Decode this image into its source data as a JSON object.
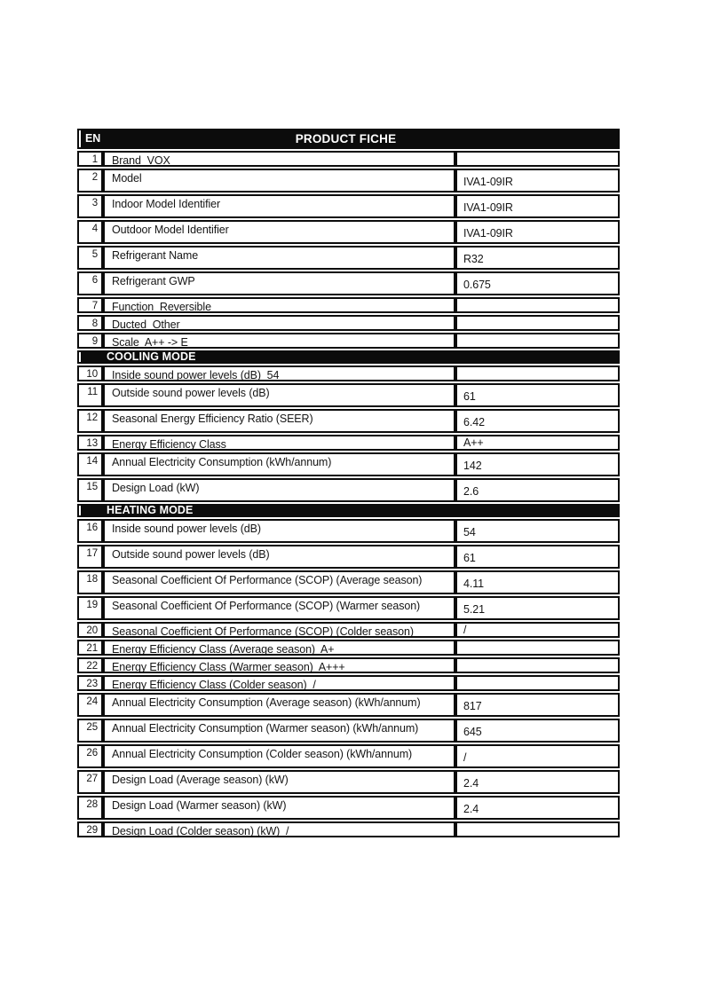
{
  "colors": {
    "ink": "#0c0c0c",
    "paper": "#ffffff"
  },
  "header": {
    "lang": "EN",
    "title": "PRODUCT FICHE"
  },
  "rows": [
    {
      "type": "data",
      "num": "1",
      "label": "Brand  VOX",
      "value": "",
      "size": "short"
    },
    {
      "type": "data",
      "num": "2",
      "label": "Model",
      "value": "IVA1-09IR",
      "size": "tall"
    },
    {
      "type": "data",
      "num": "3",
      "label": "Indoor Model Identifier",
      "value": "IVA1-09IR",
      "size": "tall"
    },
    {
      "type": "data",
      "num": "4",
      "label": "Outdoor Model Identifier",
      "value": "IVA1-09IR",
      "size": "tall"
    },
    {
      "type": "data",
      "num": "5",
      "label": "Refrigerant Name",
      "value": "R32",
      "size": "tall"
    },
    {
      "type": "data",
      "num": "6",
      "label": "Refrigerant GWP",
      "value": "0.675",
      "size": "tall"
    },
    {
      "type": "data",
      "num": "7",
      "label": "Function  Reversible",
      "value": "",
      "size": "short"
    },
    {
      "type": "data",
      "num": "8",
      "label": "Ducted  Other",
      "value": "",
      "size": "short"
    },
    {
      "type": "data",
      "num": "9",
      "label": "Scale  A++ -> E",
      "value": "",
      "size": "short"
    },
    {
      "type": "section",
      "title": "COOLING MODE"
    },
    {
      "type": "data",
      "num": "10",
      "label": "Inside sound power levels (dB)  54",
      "value": "",
      "size": "short"
    },
    {
      "type": "data",
      "num": "11",
      "label": "Outside sound power levels (dB)",
      "value": "61",
      "size": "tall"
    },
    {
      "type": "data",
      "num": "12",
      "label": "Seasonal Energy Efficiency Ratio (SEER)",
      "value": "6.42",
      "size": "tall"
    },
    {
      "type": "data",
      "num": "13",
      "label": "Energy Efficiency Class",
      "value": "A++",
      "size": "short"
    },
    {
      "type": "data",
      "num": "14",
      "label": "Annual Electricity Consumption (kWh/annum)",
      "value": "142",
      "size": "tall"
    },
    {
      "type": "data",
      "num": "15",
      "label": "Design Load (kW)",
      "value": "2.6",
      "size": "tall"
    },
    {
      "type": "section",
      "title": "HEATING MODE"
    },
    {
      "type": "data",
      "num": "16",
      "label": "Inside sound power levels (dB)",
      "value": "54",
      "size": "tall"
    },
    {
      "type": "data",
      "num": "17",
      "label": "Outside sound power levels (dB)",
      "value": "61",
      "size": "tall"
    },
    {
      "type": "data",
      "num": "18",
      "label": "Seasonal Coefficient Of Performance (SCOP) (Average season)",
      "value": "4.11",
      "size": "tall"
    },
    {
      "type": "data",
      "num": "19",
      "label": "Seasonal Coefficient Of Performance (SCOP) (Warmer season)",
      "value": "5.21",
      "size": "tall"
    },
    {
      "type": "data",
      "num": "20",
      "label": "Seasonal Coefficient Of Performance (SCOP) (Colder season)",
      "value": "/",
      "size": "short"
    },
    {
      "type": "data",
      "num": "21",
      "label": "Energy Efficiency Class (Average season)  A+",
      "value": "",
      "size": "short"
    },
    {
      "type": "data",
      "num": "22",
      "label": "Energy Efficiency Class (Warmer season)  A+++",
      "value": "",
      "size": "short"
    },
    {
      "type": "data",
      "num": "23",
      "label": "Energy Efficiency Class (Colder season)  /",
      "value": "",
      "size": "short"
    },
    {
      "type": "data",
      "num": "24",
      "label": "Annual Electricity Consumption (Average season) (kWh/annum)",
      "value": "817",
      "size": "tall"
    },
    {
      "type": "data",
      "num": "25",
      "label": "Annual Electricity Consumption (Warmer season) (kWh/annum)",
      "value": "645",
      "size": "tall"
    },
    {
      "type": "data",
      "num": "26",
      "label": "Annual Electricity Consumption (Colder season) (kWh/annum)",
      "value": "/",
      "size": "tall"
    },
    {
      "type": "data",
      "num": "27",
      "label": "Design Load (Average season) (kW)",
      "value": "2.4",
      "size": "tall"
    },
    {
      "type": "data",
      "num": "28",
      "label": "Design Load (Warmer season) (kW)",
      "value": "2.4",
      "size": "tall"
    },
    {
      "type": "data",
      "num": "29",
      "label": "Design Load (Colder season) (kW)  /",
      "value": "",
      "size": "short"
    }
  ]
}
